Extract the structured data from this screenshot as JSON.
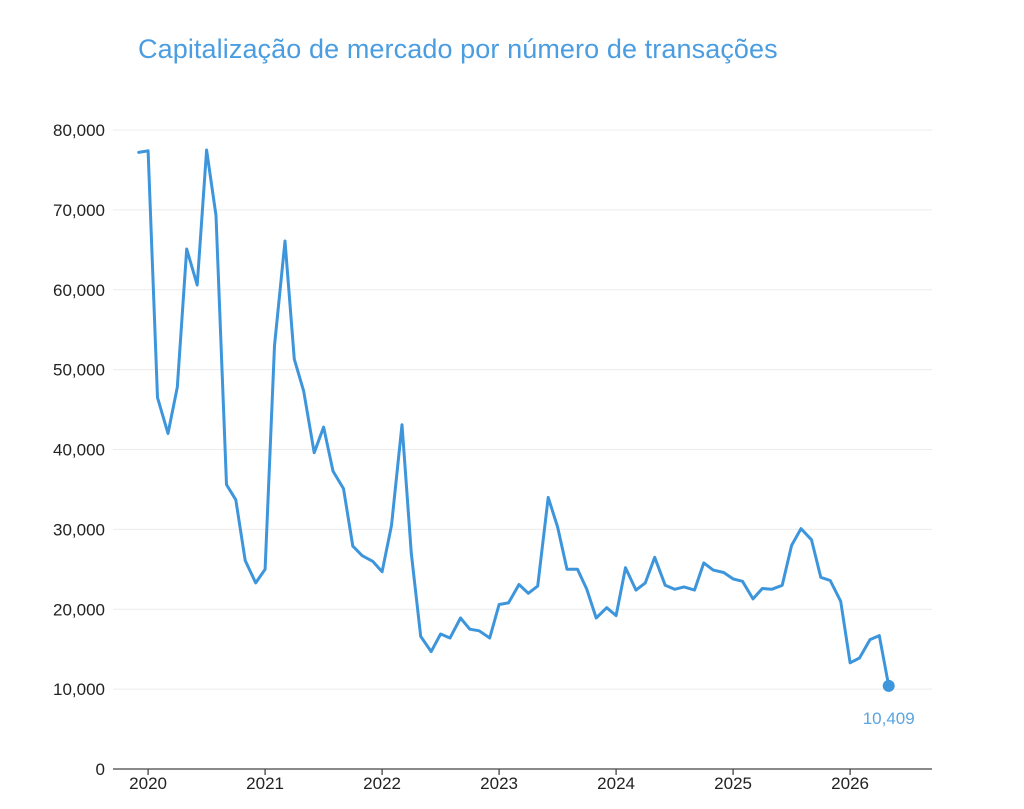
{
  "chart_data": {
    "type": "line",
    "title": "Capitalização de mercado por número de transações",
    "xlabel": "",
    "ylabel": "",
    "x_ticks": [
      "2020",
      "2021",
      "2022",
      "2023",
      "2024",
      "2025",
      "2026"
    ],
    "x_tick_values": [
      2020,
      2021,
      2022,
      2023,
      2024,
      2025,
      2026
    ],
    "y_ticks": [
      "0",
      "10,000",
      "20,000",
      "30,000",
      "40,000",
      "50,000",
      "60,000",
      "70,000",
      "80,000"
    ],
    "y_tick_values": [
      0,
      10000,
      20000,
      30000,
      40000,
      50000,
      60000,
      70000,
      80000
    ],
    "xlim": [
      2019.7,
      2026.7
    ],
    "ylim": [
      0,
      80000
    ],
    "grid": true,
    "legend": "none",
    "color": "#3d96dc",
    "end_label": "10,409",
    "series": [
      {
        "points": [
          [
            2019.92,
            77200
          ],
          [
            2020.0,
            77400
          ],
          [
            2020.08,
            46500
          ],
          [
            2020.17,
            42000
          ],
          [
            2020.25,
            47800
          ],
          [
            2020.33,
            65100
          ],
          [
            2020.42,
            60600
          ],
          [
            2020.5,
            77500
          ],
          [
            2020.58,
            69300
          ],
          [
            2020.67,
            35600
          ],
          [
            2020.75,
            33700
          ],
          [
            2020.83,
            26100
          ],
          [
            2020.92,
            23300
          ],
          [
            2021.0,
            25000
          ],
          [
            2021.08,
            53000
          ],
          [
            2021.17,
            66100
          ],
          [
            2021.25,
            51300
          ],
          [
            2021.33,
            47300
          ],
          [
            2021.42,
            39600
          ],
          [
            2021.5,
            42800
          ],
          [
            2021.58,
            37300
          ],
          [
            2021.67,
            35100
          ],
          [
            2021.75,
            27900
          ],
          [
            2021.83,
            26700
          ],
          [
            2021.92,
            26000
          ],
          [
            2022.0,
            24700
          ],
          [
            2022.08,
            30500
          ],
          [
            2022.17,
            43100
          ],
          [
            2022.25,
            27000
          ],
          [
            2022.33,
            16600
          ],
          [
            2022.42,
            14700
          ],
          [
            2022.5,
            16900
          ],
          [
            2022.58,
            16400
          ],
          [
            2022.67,
            18900
          ],
          [
            2022.75,
            17500
          ],
          [
            2022.83,
            17300
          ],
          [
            2022.92,
            16400
          ],
          [
            2023.0,
            20600
          ],
          [
            2023.08,
            20800
          ],
          [
            2023.17,
            23100
          ],
          [
            2023.25,
            22000
          ],
          [
            2023.33,
            22900
          ],
          [
            2023.42,
            34000
          ],
          [
            2023.5,
            30300
          ],
          [
            2023.58,
            25000
          ],
          [
            2023.67,
            25000
          ],
          [
            2023.75,
            22500
          ],
          [
            2023.83,
            18900
          ],
          [
            2023.92,
            20200
          ],
          [
            2024.0,
            19200
          ],
          [
            2024.08,
            25200
          ],
          [
            2024.17,
            22400
          ],
          [
            2024.25,
            23300
          ],
          [
            2024.33,
            26500
          ],
          [
            2024.42,
            23000
          ],
          [
            2024.5,
            22500
          ],
          [
            2024.58,
            22800
          ],
          [
            2024.67,
            22400
          ],
          [
            2024.75,
            25800
          ],
          [
            2024.83,
            24900
          ],
          [
            2024.92,
            24600
          ],
          [
            2025.0,
            23800
          ],
          [
            2025.08,
            23500
          ],
          [
            2025.17,
            21300
          ],
          [
            2025.25,
            22600
          ],
          [
            2025.33,
            22500
          ],
          [
            2025.42,
            23000
          ],
          [
            2025.5,
            28000
          ],
          [
            2025.58,
            30100
          ],
          [
            2025.67,
            28700
          ],
          [
            2025.75,
            24000
          ],
          [
            2025.83,
            23600
          ],
          [
            2025.92,
            21000
          ],
          [
            2026.0,
            13300
          ],
          [
            2026.08,
            13900
          ],
          [
            2026.17,
            16200
          ],
          [
            2026.25,
            16700
          ],
          [
            2026.33,
            10409
          ]
        ]
      }
    ]
  }
}
